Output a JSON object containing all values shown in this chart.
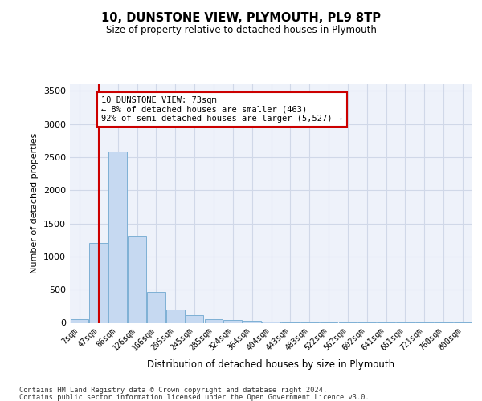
{
  "title1": "10, DUNSTONE VIEW, PLYMOUTH, PL9 8TP",
  "title2": "Size of property relative to detached houses in Plymouth",
  "xlabel": "Distribution of detached houses by size in Plymouth",
  "ylabel": "Number of detached properties",
  "bar_labels": [
    "7sqm",
    "47sqm",
    "86sqm",
    "126sqm",
    "166sqm",
    "205sqm",
    "245sqm",
    "285sqm",
    "324sqm",
    "364sqm",
    "404sqm",
    "443sqm",
    "483sqm",
    "522sqm",
    "562sqm",
    "602sqm",
    "641sqm",
    "681sqm",
    "721sqm",
    "760sqm",
    "800sqm"
  ],
  "bar_values": [
    50,
    1210,
    2580,
    1310,
    470,
    200,
    110,
    55,
    40,
    25,
    15,
    10,
    5,
    3,
    2,
    2,
    1,
    1,
    1,
    1,
    1
  ],
  "bar_color": "#c6d9f1",
  "bar_edge_color": "#7eb0d5",
  "grid_color": "#d0d8e8",
  "background_color": "#eef2fa",
  "vline_x_index": 1,
  "vline_color": "#cc0000",
  "annotation_text": "10 DUNSTONE VIEW: 73sqm\n← 8% of detached houses are smaller (463)\n92% of semi-detached houses are larger (5,527) →",
  "annotation_box_color": "#ffffff",
  "annotation_box_edge": "#cc0000",
  "ylim": [
    0,
    3600
  ],
  "yticks": [
    0,
    500,
    1000,
    1500,
    2000,
    2500,
    3000,
    3500
  ],
  "footer1": "Contains HM Land Registry data © Crown copyright and database right 2024.",
  "footer2": "Contains public sector information licensed under the Open Government Licence v3.0."
}
